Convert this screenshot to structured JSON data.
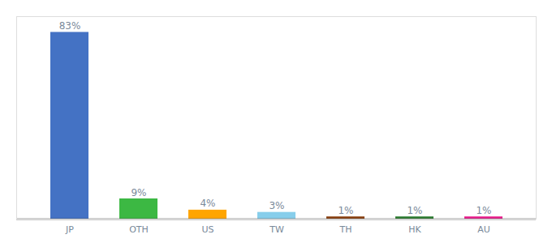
{
  "chart_data": {
    "type": "bar",
    "categories": [
      "JP",
      "OTH",
      "US",
      "TW",
      "TH",
      "HK",
      "AU"
    ],
    "values": [
      83,
      9,
      4,
      3,
      1,
      1,
      1
    ],
    "value_labels": [
      "83%",
      "9%",
      "4%",
      "3%",
      "1%",
      "1%",
      "1%"
    ],
    "colors": [
      "#4472C4",
      "#3CB843",
      "#FFA500",
      "#87CEEB",
      "#8B4010",
      "#2E7D32",
      "#E91E8C"
    ],
    "ylim": [
      0,
      90
    ],
    "data_labels": true,
    "tick_labels": "x",
    "grid": false
  }
}
